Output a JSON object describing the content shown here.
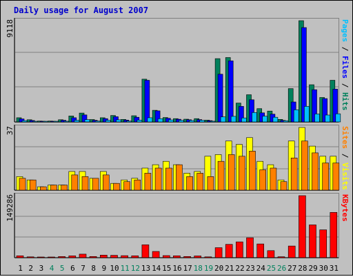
{
  "chart_data": {
    "type": "bar",
    "title": "Daily usage for August 2007",
    "days": [
      "1",
      "2",
      "3",
      "4",
      "5",
      "6",
      "7",
      "8",
      "9",
      "10",
      "11",
      "12",
      "13",
      "14",
      "15",
      "16",
      "17",
      "18",
      "19",
      "20",
      "21",
      "22",
      "23",
      "24",
      "25",
      "26",
      "27",
      "28",
      "29",
      "30",
      "31"
    ],
    "weekend_days": [
      "4",
      "5",
      "11",
      "12",
      "18",
      "19",
      "25",
      "26"
    ],
    "panels": [
      {
        "id": "hits",
        "max_label": "9118",
        "ymax": 9118,
        "side_label": [
          {
            "text": "Pages",
            "color": "#00c0ff"
          },
          {
            "text": " / ",
            "color": "#000000"
          },
          {
            "text": "Files",
            "color": "#0000ff"
          },
          {
            "text": " / ",
            "color": "#000000"
          },
          {
            "text": "Hits",
            "color": "#00805c"
          }
        ],
        "series": [
          {
            "name": "Hits",
            "color": "#00805c",
            "values": [
              380,
              200,
              80,
              80,
              200,
              540,
              800,
              220,
              380,
              580,
              230,
              560,
              3850,
              1050,
              400,
              300,
              250,
              300,
              160,
              5700,
              5800,
              1700,
              2450,
              1200,
              980,
              230,
              3000,
              9118,
              3350,
              2200,
              3750
            ]
          },
          {
            "name": "Files",
            "color": "#0000ff",
            "values": [
              270,
              130,
              50,
              50,
              150,
              380,
              630,
              150,
              300,
              470,
              170,
              420,
              3750,
              1000,
              330,
              240,
              200,
              210,
              120,
              4300,
              5500,
              1400,
              2000,
              820,
              700,
              140,
              1800,
              8500,
              2900,
              2100,
              2950
            ]
          },
          {
            "name": "Pages",
            "color": "#00c0ff",
            "values": [
              120,
              60,
              30,
              30,
              70,
              150,
              210,
              80,
              150,
              190,
              80,
              170,
              380,
              290,
              180,
              140,
              130,
              150,
              70,
              450,
              500,
              360,
              850,
              520,
              420,
              110,
              1100,
              1400,
              720,
              620,
              730
            ]
          }
        ]
      },
      {
        "id": "visits",
        "max_label": "37",
        "ymax": 37,
        "side_label": [
          {
            "text": "Sites",
            "color": "#ff8000"
          },
          {
            "text": " / ",
            "color": "#000000"
          },
          {
            "text": "Visits",
            "color": "#ffff00"
          }
        ],
        "series": [
          {
            "name": "Visits",
            "color": "#ffff00",
            "values": [
              8,
              6,
              2,
              3,
              3,
              11,
              11,
              7,
              11,
              4,
              6,
              7,
              13,
              15,
              17,
              15,
              10,
              11,
              20,
              21,
              29,
              27,
              31,
              17,
              15,
              6,
              29,
              37,
              26,
              20,
              20
            ]
          },
          {
            "name": "Sites",
            "color": "#ff8000",
            "values": [
              7,
              6,
              2,
              3,
              3,
              9,
              8,
              7,
              9,
              4,
              5,
              6,
              10,
              13,
              13,
              15,
              8,
              10,
              8,
              17,
              21,
              20,
              23,
              12,
              13,
              5,
              19,
              29,
              22,
              16,
              16
            ]
          }
        ]
      },
      {
        "id": "kbytes",
        "max_label": "149286",
        "ymax": 149286,
        "side_label": [
          {
            "text": "KBytes",
            "color": "#ff0000"
          }
        ],
        "series": [
          {
            "name": "KBytes",
            "color": "#ff0000",
            "values": [
              4500,
              2000,
              700,
              700,
              2700,
              4300,
              8500,
              2800,
              6200,
              5700,
              4800,
              4500,
              31000,
              15000,
              5000,
              4400,
              2800,
              4200,
              2000,
              24000,
              32000,
              38000,
              48000,
              33000,
              17000,
              2200,
              28000,
              149286,
              79000,
              67000,
              109000
            ]
          }
        ]
      }
    ]
  }
}
